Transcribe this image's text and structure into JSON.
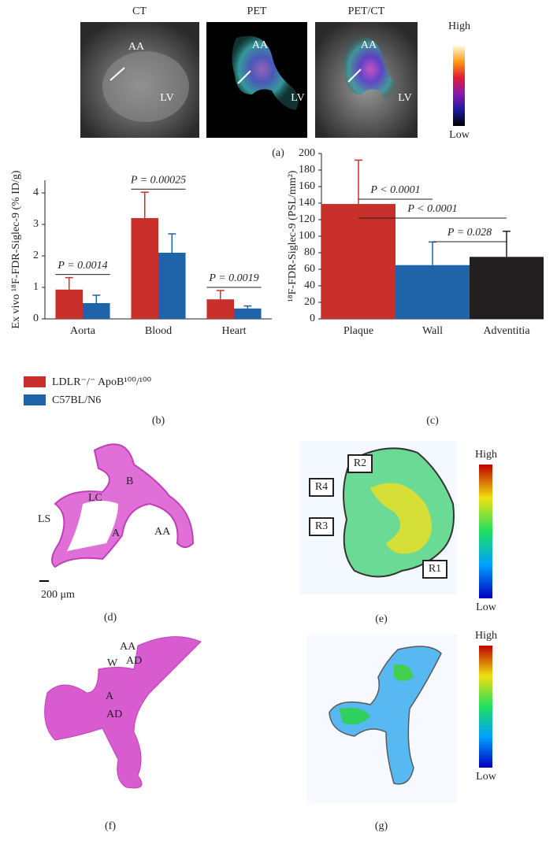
{
  "panel_a": {
    "titles": [
      "CT",
      "PET",
      "PET/CT"
    ],
    "ct_labels": [
      "AA",
      "LV"
    ],
    "pet_labels": [
      "AA",
      "LV"
    ],
    "fused_labels": [
      "AA",
      "LV"
    ],
    "colorbar": {
      "high": "High",
      "low": "Low"
    },
    "caption": "(a)"
  },
  "chart_data": [
    {
      "type": "bar",
      "caption": "(b)",
      "ylabel": "Ex vivo ¹⁸F-FDR-Siglec-9 (% ID/g)",
      "categories": [
        "Aorta",
        "Blood",
        "Heart"
      ],
      "series": [
        {
          "name": "LDLR⁻/⁻ ApoB¹⁰⁰/¹⁰⁰",
          "color": "#c9302c",
          "values": [
            0.93,
            3.2,
            0.62
          ],
          "errors": [
            0.38,
            0.82,
            0.28
          ]
        },
        {
          "name": "C57BL/N6",
          "color": "#1f63a9",
          "values": [
            0.5,
            2.1,
            0.33
          ],
          "errors": [
            0.25,
            0.6,
            0.08
          ]
        }
      ],
      "ylim": [
        0,
        4.4
      ],
      "yticks": [
        0,
        1,
        2,
        3,
        4
      ],
      "legend": "bottom-left",
      "annotations": [
        {
          "text": "P = 0.0014",
          "span": [
            0,
            0
          ]
        },
        {
          "text": "P = 0.00025",
          "span": [
            1,
            1
          ]
        },
        {
          "text": "P = 0.0019",
          "span": [
            2,
            2
          ]
        }
      ]
    },
    {
      "type": "bar",
      "caption": "(c)",
      "ylabel": "¹⁸F-FDR-Siglec-9 (PSL/mm²)",
      "categories": [
        "Plaque",
        "Wall",
        "Adventitia"
      ],
      "values": [
        139,
        65,
        75
      ],
      "errors": [
        53,
        28,
        31
      ],
      "colors": [
        "#c9302c",
        "#1f63a9",
        "#231f20"
      ],
      "ylim": [
        0,
        200
      ],
      "yticks": [
        0,
        20,
        40,
        60,
        80,
        100,
        120,
        140,
        160,
        180,
        200
      ],
      "annotations": [
        {
          "text": "P < 0.0001",
          "span": [
            0,
            1
          ]
        },
        {
          "text": "P < 0.0001",
          "span": [
            0,
            2
          ]
        },
        {
          "text": "P = 0.028",
          "span": [
            1,
            2
          ]
        }
      ]
    }
  ],
  "panel_d": {
    "labels": [
      "B",
      "LC",
      "LS",
      "A",
      "AA"
    ],
    "scale_bar": "200 μm",
    "caption": "(d)"
  },
  "panel_e": {
    "regions": [
      "R2",
      "R4",
      "R3",
      "R1"
    ],
    "colorbar": {
      "high": "High",
      "low": "Low"
    },
    "caption": "(e)"
  },
  "panel_f": {
    "labels": [
      "AA",
      "AD",
      "W",
      "A",
      "AD"
    ],
    "caption": "(f)"
  },
  "panel_g": {
    "colorbar": {
      "high": "High",
      "low": "Low"
    },
    "caption": "(g)"
  }
}
